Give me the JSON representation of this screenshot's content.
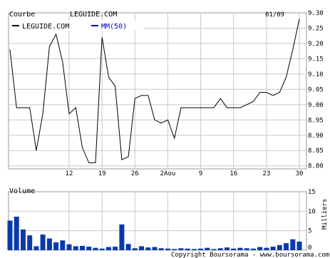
{
  "header": {
    "label": "Courbe",
    "symbol": "LEGUIDE.COM",
    "date": "01/09"
  },
  "legend": {
    "price_label": "LEGUIDE.COM",
    "ma_label": "MM(50)",
    "price_color": "#000000",
    "ma_color": "#0000cc"
  },
  "volume_panel": {
    "label": "Volume",
    "unit_label": "Milliers",
    "bar_color": "#0a3aa8"
  },
  "copyright": "Copyright Boursorama - www.boursorama.com",
  "chart_data": [
    {
      "type": "line",
      "title": "LEGUIDE.COM",
      "x_tick_labels": [
        "12",
        "19",
        "26",
        "2Aou",
        "9",
        "16",
        "23",
        "30"
      ],
      "y_tick_labels": [
        "9.30",
        "9.25",
        "9.20",
        "9.15",
        "9.10",
        "9.05",
        "9.00",
        "8.95",
        "8.90",
        "8.85",
        "8.80"
      ],
      "ylim": [
        8.79,
        9.3
      ],
      "grid": true,
      "series": [
        {
          "name": "LEGUIDE.COM",
          "values": [
            9.18,
            8.99,
            8.99,
            8.99,
            8.85,
            8.97,
            9.19,
            9.23,
            9.14,
            8.97,
            8.99,
            8.86,
            8.81,
            8.81,
            9.22,
            9.09,
            9.06,
            8.82,
            8.83,
            9.02,
            9.03,
            9.03,
            8.95,
            8.94,
            8.95,
            8.89,
            8.99,
            8.99,
            8.99,
            8.99,
            8.99,
            8.99,
            9.02,
            8.99,
            8.99,
            8.99,
            9.0,
            9.01,
            9.04,
            9.04,
            9.03,
            9.04,
            9.09,
            9.18,
            9.28
          ]
        }
      ]
    },
    {
      "type": "bar",
      "title": "Volume",
      "y_tick_labels": [
        "15",
        "10",
        "5",
        "0"
      ],
      "ylim": [
        0,
        15
      ],
      "ylabel": "Milliers",
      "grid": true,
      "series": [
        {
          "name": "Volume",
          "values": [
            7.6,
            8.6,
            5.3,
            3.8,
            1.0,
            4.0,
            3.0,
            2.0,
            2.5,
            1.5,
            1.0,
            1.1,
            0.9,
            0.6,
            0.4,
            0.8,
            0.9,
            6.6,
            1.6,
            0.5,
            1.0,
            0.7,
            0.8,
            0.5,
            0.4,
            0.3,
            0.5,
            0.4,
            0.3,
            0.4,
            0.6,
            0.3,
            0.5,
            0.7,
            0.4,
            0.6,
            0.5,
            0.4,
            0.8,
            0.6,
            0.9,
            1.3,
            1.8,
            2.8,
            2.2
          ]
        }
      ]
    }
  ]
}
